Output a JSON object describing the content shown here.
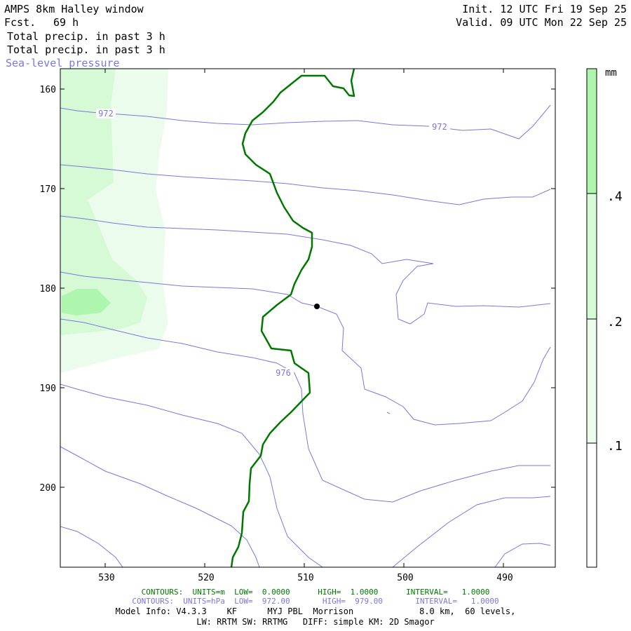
{
  "header": {
    "title": "AMPS 8km Halley window",
    "fcst_label": "Fcst.",
    "fcst_value": "69 h",
    "init": "Init. 12 UTC Fri 19 Sep 25",
    "valid": "Valid. 09 UTC Mon 22 Sep 25",
    "field1": "Total precip. in past 3 h",
    "field2": "Total precip. in past 3 h",
    "field3": "Sea-level pressure"
  },
  "map": {
    "y_ticks": [
      "160",
      "170",
      "180",
      "190",
      "200"
    ],
    "x_ticks": [
      "530",
      "520",
      "510",
      "500",
      "490"
    ],
    "contour_labels": [
      "972",
      "972",
      "976"
    ],
    "colors": {
      "pressure": "#7878e0",
      "coast": "#007800",
      "precip_light": "#ecfcec",
      "precip_mid": "#d6fad6",
      "precip_dark": "#aef6ae",
      "station": "#000000"
    }
  },
  "colorbar": {
    "unit": "mm",
    "levels": [
      ".4",
      ".2",
      ".1"
    ],
    "colors": [
      "#aef6ae",
      "#d6fad6",
      "#ecfcec",
      "#ffffff"
    ]
  },
  "footer": {
    "contours1": "CONTOURS:  UNITS=m  LOW=  0.0000      HIGH=  1.0000      INTERVAL=   1.0000",
    "contours2": "CONTOURS:  UNITS=hPa  LOW=  972.00       HIGH=  979.00       INTERVAL=   1.0000",
    "model_info": "Model Info: V4.3.3    KF      MYJ PBL  Morrison             8.0 km,  60 levels,",
    "physics": "LW: RRTM SW: RRTMG   DIFF: simple KM: 2D Smagor"
  }
}
